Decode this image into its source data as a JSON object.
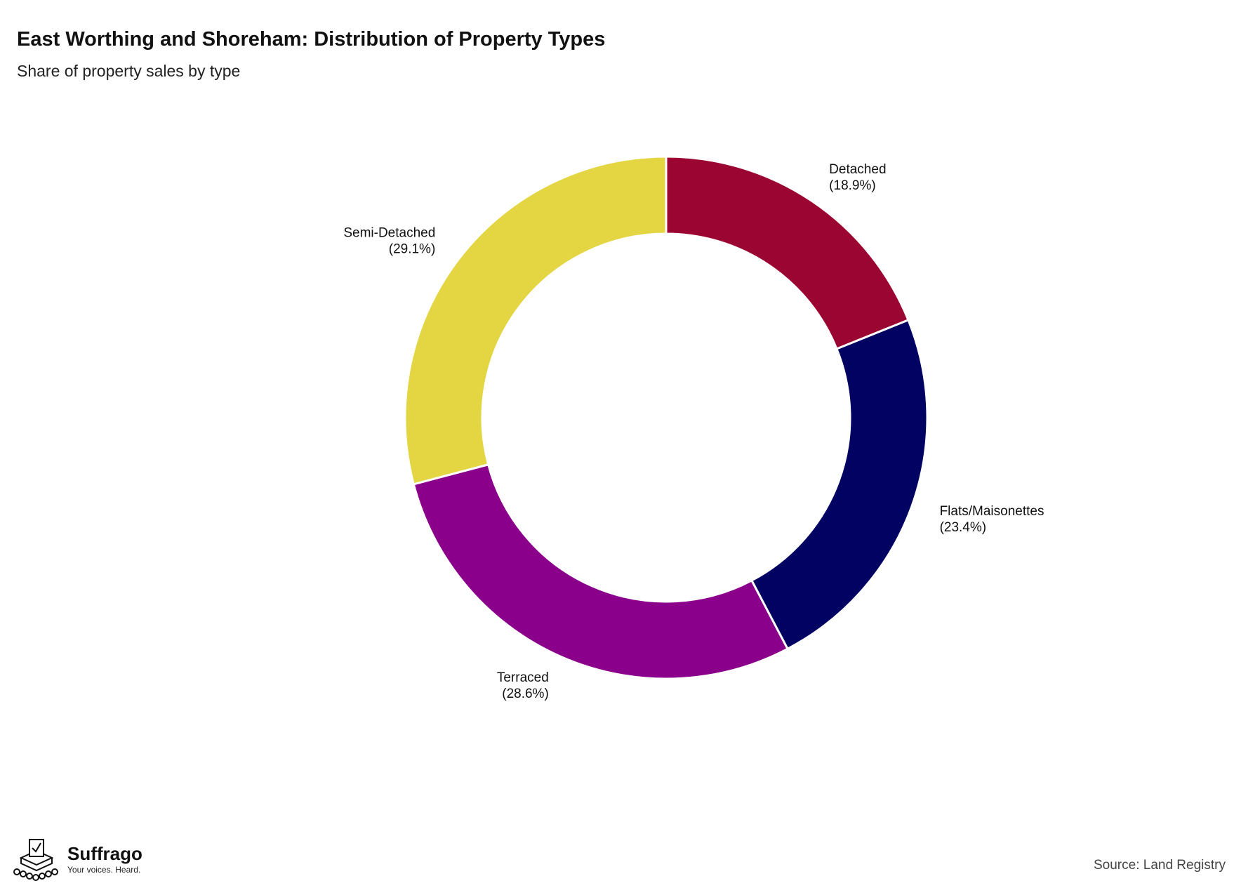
{
  "chart_data": {
    "type": "pie",
    "donut": true,
    "title": "East Worthing and Shoreham: Distribution of Property Types",
    "subtitle": "Share of property sales by type",
    "slices": [
      {
        "name": "Detached",
        "value": 18.9,
        "label": "(18.9%)",
        "color": "#9a0631"
      },
      {
        "name": "Flats/Maisonettes",
        "value": 23.4,
        "label": "(23.4%)",
        "color": "#010262"
      },
      {
        "name": "Terraced",
        "value": 28.6,
        "label": "(28.6%)",
        "color": "#8a008b"
      },
      {
        "name": "Semi-Detached",
        "value": 29.1,
        "label": "(29.1%)",
        "color": "#e3d642"
      }
    ]
  },
  "branding": {
    "name": "Suffrago",
    "tagline": "Your voices. Heard.",
    "logo_icon": "ballot-box-icon"
  },
  "source": "Source: Land Registry"
}
